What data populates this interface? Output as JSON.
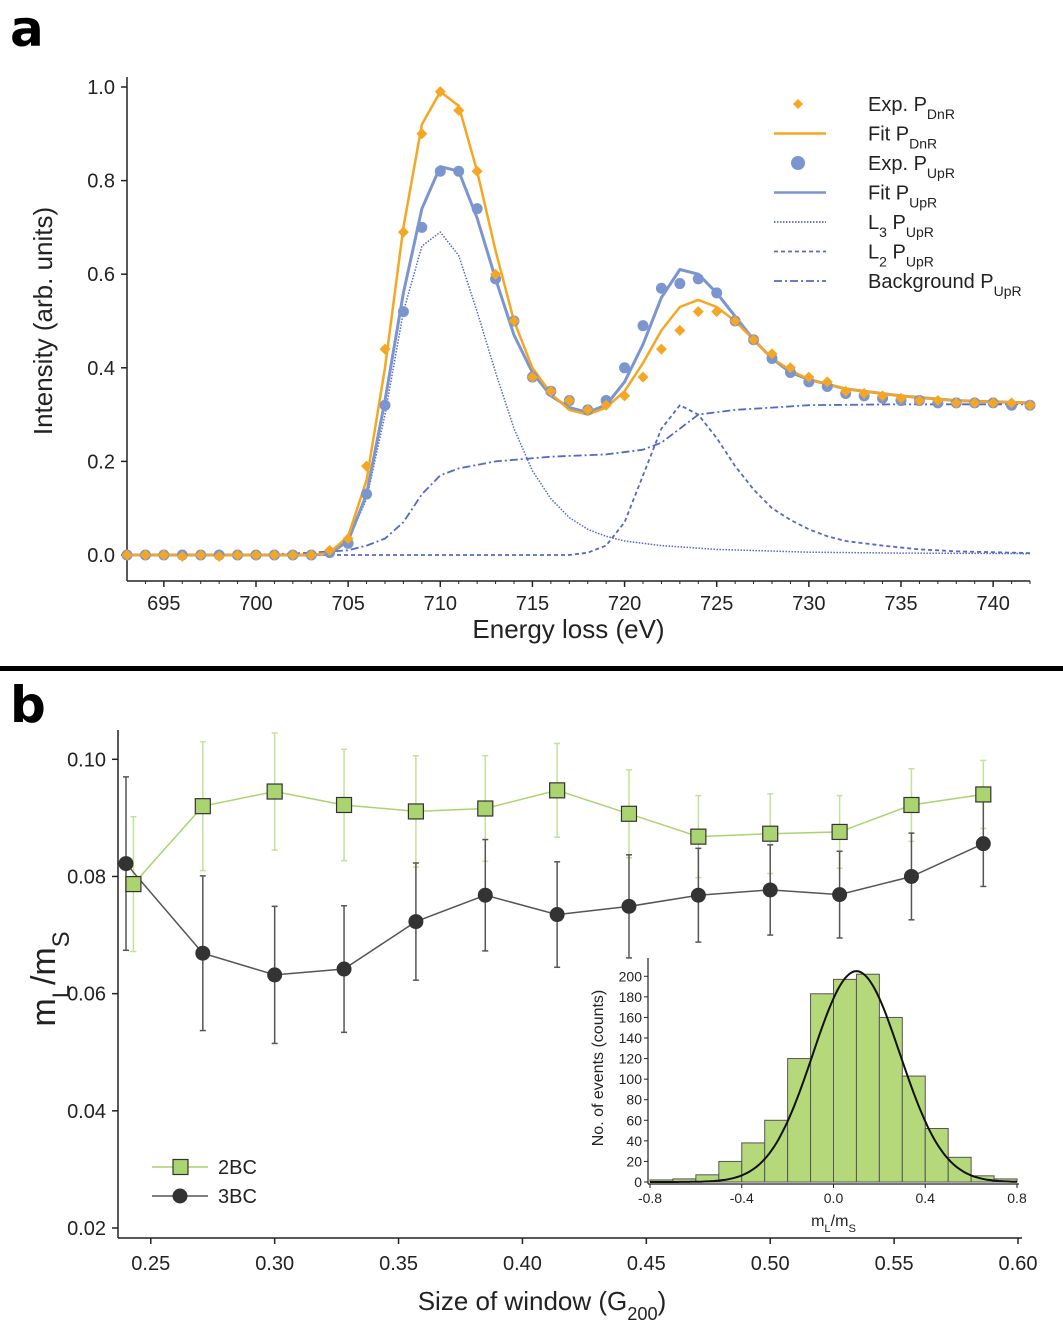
{
  "panel_a_label": "a",
  "panel_b_label": "b",
  "chart_data": [
    {
      "type": "line",
      "panel": "a",
      "xlabel": "Energy loss (eV)",
      "ylabel": "Intensity (arb. units)",
      "xlim": [
        693,
        742
      ],
      "ylim": [
        0,
        1.0
      ],
      "xticks": [
        695,
        700,
        705,
        710,
        715,
        720,
        725,
        730,
        735,
        740
      ],
      "yticks": [
        "0.0",
        "0.2",
        "0.4",
        "0.6",
        "0.8",
        "1.0"
      ],
      "legend": [
        {
          "label": "Exp. P",
          "sub": "DnR",
          "style": "orange-diamond"
        },
        {
          "label": "Fit P",
          "sub": "DnR",
          "style": "orange-line"
        },
        {
          "label": "Exp. P",
          "sub": "UpR",
          "style": "blue-dot"
        },
        {
          "label": "Fit P",
          "sub": "UpR",
          "style": "blue-line"
        },
        {
          "label": "L",
          "sub1": "3",
          "mid": " P",
          "sub": "UpR",
          "style": "dotted"
        },
        {
          "label": "L",
          "sub1": "2",
          "mid": " P",
          "sub": "UpR",
          "style": "dashed"
        },
        {
          "label": "Background P",
          "sub": "UpR",
          "style": "dashdot"
        }
      ],
      "series": [
        {
          "name": "Exp. P_DnR",
          "marker": "diamond",
          "color": "#f5a623",
          "x": [
            693,
            694,
            695,
            696,
            697,
            698,
            699,
            700,
            701,
            702,
            703,
            704,
            705,
            706,
            707,
            708,
            709,
            710,
            711,
            712,
            713,
            714,
            715,
            716,
            717,
            718,
            719,
            720,
            721,
            722,
            723,
            724,
            725,
            726,
            727,
            728,
            729,
            730,
            731,
            732,
            733,
            734,
            735,
            736,
            737,
            738,
            739,
            740,
            741,
            742
          ],
          "y": [
            0.0,
            0.0,
            0.0,
            -0.003,
            0.0,
            -0.003,
            0.0,
            0.0,
            0.0,
            0.0,
            0.0,
            0.01,
            0.035,
            0.19,
            0.44,
            0.69,
            0.9,
            0.99,
            0.95,
            0.82,
            0.6,
            0.5,
            0.38,
            0.35,
            0.33,
            0.31,
            0.32,
            0.34,
            0.38,
            0.44,
            0.48,
            0.52,
            0.52,
            0.5,
            0.46,
            0.43,
            0.4,
            0.38,
            0.37,
            0.35,
            0.345,
            0.34,
            0.335,
            0.33,
            0.33,
            0.325,
            0.325,
            0.325,
            0.325,
            0.32
          ]
        },
        {
          "name": "Fit P_DnR",
          "color": "#f5a623",
          "x": [
            693,
            700,
            703,
            704,
            705,
            706,
            707,
            708,
            709,
            710,
            711,
            712,
            713,
            714,
            715,
            716,
            717,
            718,
            719,
            720,
            721,
            722,
            723,
            724,
            725,
            726,
            727,
            728,
            729,
            730,
            732,
            735,
            738,
            742
          ],
          "y": [
            0.0,
            0.0,
            0.0,
            0.005,
            0.04,
            0.16,
            0.4,
            0.7,
            0.92,
            0.99,
            0.96,
            0.82,
            0.65,
            0.5,
            0.4,
            0.345,
            0.31,
            0.3,
            0.315,
            0.35,
            0.41,
            0.48,
            0.53,
            0.545,
            0.53,
            0.5,
            0.46,
            0.42,
            0.395,
            0.375,
            0.355,
            0.34,
            0.33,
            0.325
          ]
        },
        {
          "name": "Exp. P_UpR",
          "marker": "dot",
          "color": "#7b95cf",
          "x": [
            693,
            694,
            695,
            696,
            697,
            698,
            699,
            700,
            701,
            702,
            703,
            704,
            705,
            706,
            707,
            708,
            709,
            710,
            711,
            712,
            713,
            714,
            715,
            716,
            717,
            718,
            719,
            720,
            721,
            722,
            723,
            724,
            725,
            726,
            727,
            728,
            729,
            730,
            731,
            732,
            733,
            734,
            735,
            736,
            737,
            738,
            739,
            740,
            741,
            742
          ],
          "y": [
            0.0,
            0.0,
            0.0,
            0.0,
            0.0,
            0.0,
            0.0,
            0.0,
            0.0,
            0.0,
            0.0,
            0.005,
            0.025,
            0.13,
            0.32,
            0.52,
            0.7,
            0.82,
            0.82,
            0.74,
            0.59,
            0.5,
            0.38,
            0.35,
            0.33,
            0.31,
            0.33,
            0.4,
            0.49,
            0.57,
            0.58,
            0.59,
            0.56,
            0.5,
            0.46,
            0.42,
            0.39,
            0.37,
            0.36,
            0.345,
            0.34,
            0.335,
            0.33,
            0.33,
            0.325,
            0.325,
            0.325,
            0.325,
            0.32,
            0.32
          ]
        },
        {
          "name": "Fit P_UpR",
          "color": "#7b95cf",
          "x": [
            693,
            700,
            703,
            704,
            705,
            706,
            707,
            708,
            709,
            710,
            711,
            712,
            713,
            714,
            715,
            716,
            717,
            718,
            719,
            720,
            721,
            722,
            723,
            724,
            725,
            726,
            727,
            728,
            729,
            730,
            732,
            735,
            738,
            742
          ],
          "y": [
            0.0,
            0.0,
            0.0,
            0.003,
            0.03,
            0.13,
            0.33,
            0.56,
            0.74,
            0.83,
            0.82,
            0.72,
            0.59,
            0.47,
            0.39,
            0.34,
            0.315,
            0.305,
            0.32,
            0.37,
            0.45,
            0.55,
            0.61,
            0.6,
            0.56,
            0.51,
            0.46,
            0.42,
            0.39,
            0.375,
            0.355,
            0.34,
            0.33,
            0.325
          ]
        },
        {
          "name": "L3 P_UpR",
          "style": "dotted",
          "color": "#5568c5",
          "x": [
            693,
            703,
            704,
            705,
            706,
            707,
            708,
            709,
            710,
            711,
            712,
            713,
            714,
            715,
            716,
            717,
            718,
            719,
            720,
            722,
            725,
            730,
            735,
            742
          ],
          "y": [
            0.0,
            0.0,
            0.005,
            0.03,
            0.12,
            0.3,
            0.52,
            0.66,
            0.69,
            0.64,
            0.52,
            0.39,
            0.27,
            0.18,
            0.12,
            0.08,
            0.055,
            0.04,
            0.03,
            0.02,
            0.012,
            0.006,
            0.004,
            0.003
          ]
        },
        {
          "name": "L2 P_UpR",
          "style": "dashed",
          "color": "#5568c5",
          "x": [
            693,
            717,
            718,
            719,
            720,
            721,
            722,
            723,
            724,
            725,
            726,
            727,
            728,
            729,
            730,
            731,
            732,
            734,
            736,
            738,
            742
          ],
          "y": [
            0.0,
            0.0,
            0.005,
            0.02,
            0.07,
            0.17,
            0.27,
            0.32,
            0.3,
            0.25,
            0.19,
            0.14,
            0.1,
            0.075,
            0.055,
            0.04,
            0.03,
            0.02,
            0.012,
            0.008,
            0.004
          ]
        },
        {
          "name": "Background P_UpR",
          "style": "dashdot",
          "color": "#5568c5",
          "x": [
            693,
            700,
            703,
            705,
            706,
            707,
            708,
            709,
            710,
            711,
            713,
            716,
            719,
            721,
            722,
            723,
            724,
            726,
            728,
            730,
            735,
            742
          ],
          "y": [
            0.0,
            0.0,
            0.005,
            0.01,
            0.02,
            0.035,
            0.07,
            0.13,
            0.17,
            0.185,
            0.2,
            0.21,
            0.215,
            0.225,
            0.24,
            0.27,
            0.3,
            0.31,
            0.315,
            0.32,
            0.322,
            0.322
          ]
        }
      ]
    },
    {
      "type": "line",
      "panel": "b",
      "xlabel": "Size of window (G",
      "xlabel_sub": "200",
      "xlabel_end": ")",
      "ylabel": "m",
      "ylabel_sub1": "L",
      "ylabel_mid": "/m",
      "ylabel_sub2": "S",
      "xlim": [
        0.24,
        0.6
      ],
      "ylim": [
        0.02,
        0.105
      ],
      "xticks": [
        "0.25",
        "0.30",
        "0.35",
        "0.40",
        "0.45",
        "0.50",
        "0.55",
        "0.60"
      ],
      "yticks": [
        "0.02",
        "0.04",
        "0.06",
        "0.08",
        "0.10"
      ],
      "series": [
        {
          "name": "2BC",
          "marker": "square",
          "color": "#a9d46f",
          "x": [
            0.243,
            0.271,
            0.3,
            0.328,
            0.357,
            0.385,
            0.414,
            0.443,
            0.471,
            0.5,
            0.528,
            0.557,
            0.586
          ],
          "y": [
            0.0787,
            0.092,
            0.0945,
            0.0922,
            0.0911,
            0.0916,
            0.0947,
            0.0907,
            0.0868,
            0.0873,
            0.0876,
            0.0922,
            0.094
          ],
          "err": [
            0.0115,
            0.011,
            0.01,
            0.0095,
            0.0095,
            0.009,
            0.008,
            0.0075,
            0.007,
            0.0068,
            0.0062,
            0.0062,
            0.0058
          ]
        },
        {
          "name": "3BC",
          "marker": "circle",
          "color": "#333333",
          "x": [
            0.24,
            0.271,
            0.3,
            0.328,
            0.357,
            0.385,
            0.414,
            0.443,
            0.471,
            0.5,
            0.528,
            0.557,
            0.586
          ],
          "y": [
            0.0822,
            0.0669,
            0.0632,
            0.0642,
            0.0723,
            0.0768,
            0.0735,
            0.0749,
            0.0768,
            0.0777,
            0.0769,
            0.08,
            0.0856
          ],
          "err": [
            0.0148,
            0.0132,
            0.0117,
            0.0108,
            0.01,
            0.0095,
            0.009,
            0.0088,
            0.008,
            0.0077,
            0.0074,
            0.0074,
            0.0073
          ]
        }
      ],
      "legend": [
        {
          "label": "2BC",
          "style": "square"
        },
        {
          "label": "3BC",
          "style": "circle"
        }
      ]
    },
    {
      "type": "bar",
      "panel": "b-inset",
      "xlabel": "m",
      "xlabel_sub1": "L",
      "xlabel_mid": "/m",
      "xlabel_sub2": "S",
      "ylabel": "No. of events (counts)",
      "xlim": [
        -0.8,
        0.8
      ],
      "ylim": [
        0,
        210
      ],
      "xticks": [
        "-0.8",
        "-0.4",
        "0.0",
        "0.4",
        "0.8"
      ],
      "yticks": [
        "0",
        "20",
        "40",
        "60",
        "80",
        "100",
        "120",
        "140",
        "160",
        "180",
        "200"
      ],
      "bin_width": 0.1,
      "bin_starts": [
        -0.8,
        -0.7,
        -0.6,
        -0.5,
        -0.4,
        -0.3,
        -0.2,
        -0.1,
        0.0,
        0.1,
        0.2,
        0.3,
        0.4,
        0.5,
        0.6,
        0.7
      ],
      "values": [
        2,
        3,
        7,
        20,
        38,
        60,
        120,
        183,
        197,
        202,
        160,
        103,
        52,
        24,
        6,
        3
      ],
      "fit": {
        "type": "gaussian",
        "mean": 0.1,
        "sigma": 0.19,
        "peak": 205
      }
    }
  ]
}
